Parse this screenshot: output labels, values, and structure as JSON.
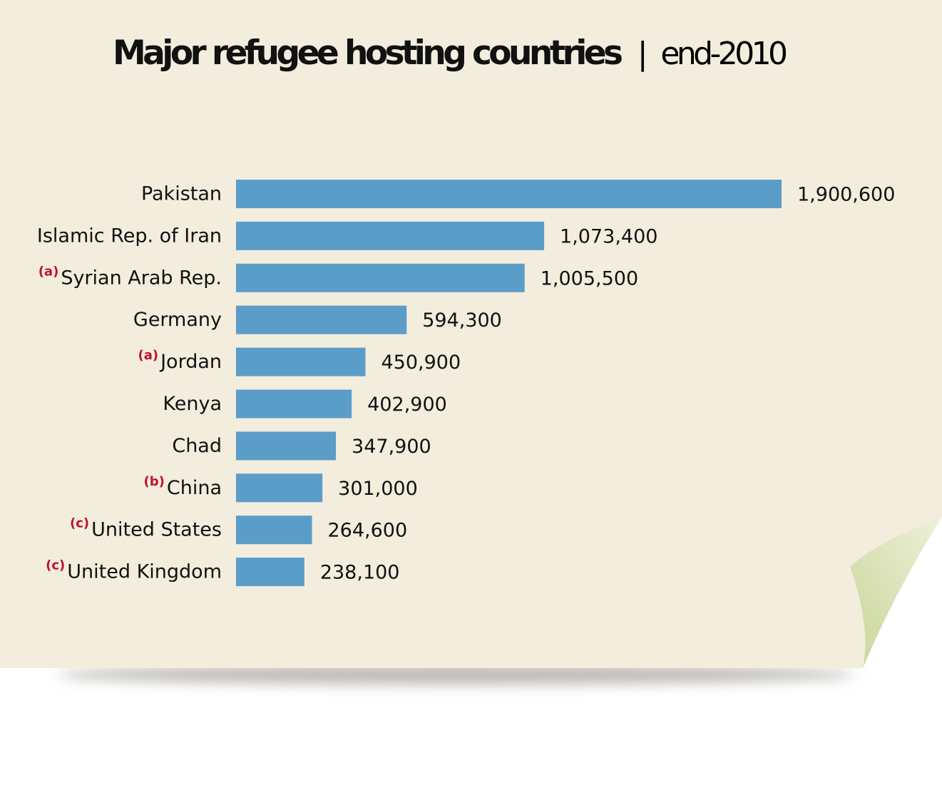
{
  "chart_data": {
    "type": "bar",
    "orientation": "horizontal",
    "title": "Major refugee hosting countries",
    "title_separator": "|",
    "subtitle": "end-2010",
    "categories": [
      "Pakistan",
      "Islamic Rep. of Iran",
      "Syrian Arab Rep.",
      "Germany",
      "Jordan",
      "Kenya",
      "Chad",
      "China",
      "United States",
      "United Kingdom"
    ],
    "footnote_marks": [
      "",
      "",
      "(a)",
      "",
      "(a)",
      "",
      "",
      "(b)",
      "(c)",
      "(c)"
    ],
    "values": [
      1900600,
      1073400,
      1005500,
      594300,
      450900,
      402900,
      347900,
      301000,
      264600,
      238100
    ],
    "value_labels": [
      "1,900,600",
      "1,073,400",
      "1,005,500",
      "594,300",
      "450,900",
      "402,900",
      "347,900",
      "301,000",
      "264,600",
      "238,100"
    ],
    "xlim": [
      0,
      1900600
    ],
    "xlabel": "",
    "ylabel": "",
    "grid": false,
    "legend": "none"
  },
  "colors": {
    "paper": "#f3eddd",
    "bar": "#5b9dc9",
    "text": "#111111",
    "footnote": "#c0102a",
    "shadow": "#bdbab4",
    "curl_light": "#eef0da",
    "curl_dark": "#c9d699"
  }
}
